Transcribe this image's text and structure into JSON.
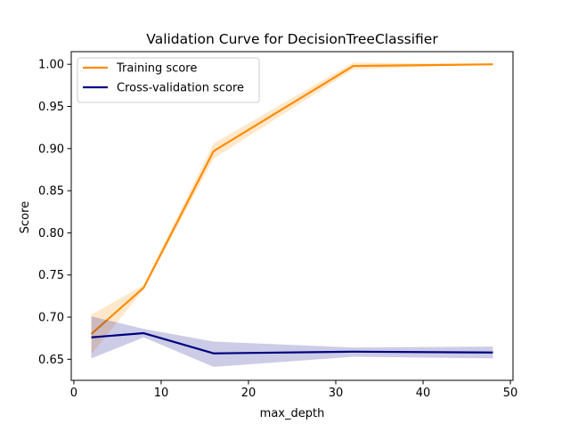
{
  "chart_data": {
    "type": "line",
    "title": "Validation Curve for DecisionTreeClassifier",
    "xlabel": "max_depth",
    "ylabel": "Score",
    "xlim": [
      -0.3,
      50.3
    ],
    "ylim": [
      0.625,
      1.015
    ],
    "xticks": [
      0,
      10,
      20,
      30,
      40,
      50
    ],
    "xtick_labels": [
      "0",
      "10",
      "20",
      "30",
      "40",
      "50"
    ],
    "yticks": [
      0.65,
      0.7,
      0.75,
      0.8,
      0.85,
      0.9,
      0.95,
      1.0
    ],
    "ytick_labels": [
      "0.65",
      "0.70",
      "0.75",
      "0.80",
      "0.85",
      "0.90",
      "0.95",
      "1.00"
    ],
    "grid": false,
    "legend_position": "upper-left",
    "x": [
      2,
      8,
      16,
      32,
      48
    ],
    "series": [
      {
        "name": "Training score",
        "color": "#ff8c00",
        "values": [
          0.68,
          0.735,
          0.897,
          0.998,
          1.0
        ],
        "band_lower": [
          0.656,
          0.733,
          0.888,
          0.994,
          1.0
        ],
        "band_upper": [
          0.703,
          0.738,
          0.906,
          1.002,
          1.0
        ]
      },
      {
        "name": "Cross-validation score",
        "color": "#000080",
        "values": [
          0.676,
          0.681,
          0.657,
          0.659,
          0.658
        ],
        "band_lower": [
          0.651,
          0.676,
          0.641,
          0.653,
          0.651
        ],
        "band_upper": [
          0.701,
          0.686,
          0.671,
          0.664,
          0.665
        ]
      }
    ]
  }
}
